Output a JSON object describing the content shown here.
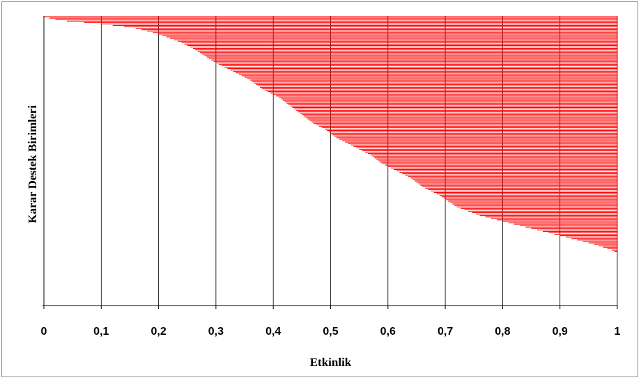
{
  "chart_data": {
    "type": "bar",
    "orientation": "horizontal",
    "xlabel": "Etkinlik",
    "ylabel": "Karar Destek Birimleri",
    "xlim": [
      0,
      1
    ],
    "x_ticks": [
      "0",
      "0,1",
      "0,2",
      "0,3",
      "0,4",
      "0,5",
      "0,6",
      "0,7",
      "0,8",
      "0,9",
      "1"
    ],
    "grid": "vertical",
    "bar_color": "#ff0000",
    "profile": [
      [
        0,
        0.0
      ],
      [
        2,
        0.02
      ],
      [
        3,
        0.04
      ],
      [
        4,
        0.07
      ],
      [
        5,
        0.1
      ],
      [
        6,
        0.12
      ],
      [
        7,
        0.14
      ],
      [
        8,
        0.16
      ],
      [
        10,
        0.18
      ],
      [
        12,
        0.2
      ],
      [
        15,
        0.22
      ],
      [
        18,
        0.24
      ],
      [
        22,
        0.26
      ],
      [
        27,
        0.28
      ],
      [
        32,
        0.3
      ],
      [
        36,
        0.32
      ],
      [
        40,
        0.34
      ],
      [
        44,
        0.36
      ],
      [
        50,
        0.38
      ],
      [
        56,
        0.41
      ],
      [
        62,
        0.43
      ],
      [
        68,
        0.45
      ],
      [
        74,
        0.47
      ],
      [
        78,
        0.49
      ],
      [
        84,
        0.51
      ],
      [
        90,
        0.54
      ],
      [
        96,
        0.57
      ],
      [
        102,
        0.59
      ],
      [
        106,
        0.61
      ],
      [
        112,
        0.64
      ],
      [
        118,
        0.66
      ],
      [
        124,
        0.69
      ],
      [
        132,
        0.72
      ],
      [
        138,
        0.76
      ],
      [
        142,
        0.8
      ],
      [
        146,
        0.84
      ],
      [
        150,
        0.88
      ],
      [
        154,
        0.92
      ],
      [
        158,
        0.96
      ],
      [
        162,
        0.99
      ],
      [
        164,
        1.0
      ],
      [
        200,
        1.0
      ]
    ],
    "n_units": 201
  }
}
